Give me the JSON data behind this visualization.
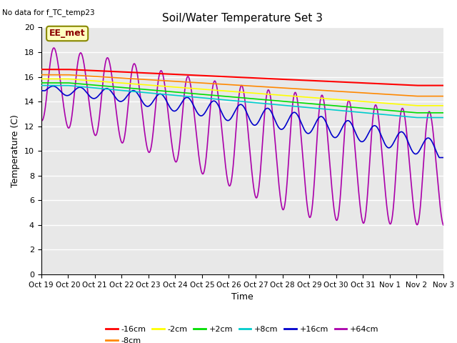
{
  "title": "Soil/Water Temperature Set 3",
  "xlabel": "Time",
  "ylabel": "Temperature (C)",
  "top_left_text": "No data for f_TC_temp23",
  "annotation_box": "EE_met",
  "ylim": [
    0,
    20
  ],
  "xlim": [
    0,
    15
  ],
  "xtick_labels": [
    "Oct 19",
    "Oct 20",
    "Oct 21",
    "Oct 22",
    "Oct 23",
    "Oct 24",
    "Oct 25",
    "Oct 26",
    "Oct 27",
    "Oct 28",
    "Oct 29",
    "Oct 30",
    "Oct 31",
    "Nov 1",
    "Nov 2",
    "Nov 3"
  ],
  "series": {
    "-16cm": {
      "color": "#ff0000"
    },
    "-8cm": {
      "color": "#ff8800"
    },
    "-2cm": {
      "color": "#ffff00"
    },
    "+2cm": {
      "color": "#00dd00"
    },
    "+8cm": {
      "color": "#00cccc"
    },
    "+16cm": {
      "color": "#0000cc"
    },
    "+64cm": {
      "color": "#aa00aa"
    }
  },
  "background_color": "#e8e8e8"
}
